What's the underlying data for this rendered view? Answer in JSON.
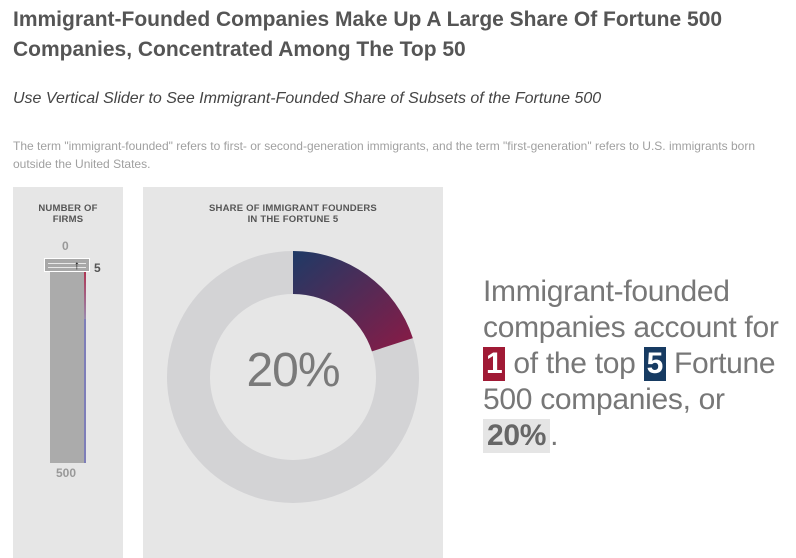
{
  "header": {
    "title": "Immigrant-Founded Companies Make Up A Large Share Of Fortune 500 Companies, Concentrated Among The Top 50",
    "subtitle": "Use Vertical Slider to See Immigrant-Founded Share of Subsets of the Fortune 500",
    "note": "The term \"immigrant-founded\" refers to first- or second-generation immigrants, and the term \"first-generation\" refers to U.S. immigrants born outside the United States."
  },
  "slider": {
    "heading_line1": "NUMBER OF",
    "heading_line2": "FIRMS",
    "min_label": "0",
    "max_label": "500",
    "value": "5",
    "value_fraction": 0.01
  },
  "donut": {
    "heading_line1": "SHARE OF IMMIGRANT FOUNDERS",
    "heading_line2": "IN THE FORTUNE 5",
    "center_label": "20%",
    "share": 0.2,
    "colors": {
      "track": "#d3d3d5",
      "segment_start": "#1e3a66",
      "segment_end": "#8b1a45"
    }
  },
  "summary": {
    "text_1": "Immigrant-founded companies account for ",
    "count": "1",
    "text_2": " of the top ",
    "total": "5",
    "text_3": " Fortune 500 companies, or ",
    "percent": "20%",
    "text_4": ".",
    "colors": {
      "count_box": "#a01a35",
      "total_box": "#173b62"
    }
  }
}
